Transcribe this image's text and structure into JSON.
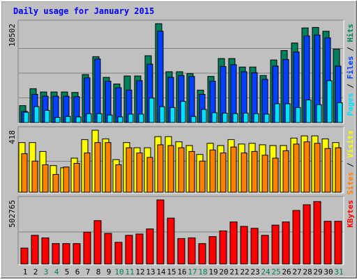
{
  "title": "Daily usage for January 2015",
  "colors": {
    "background": "#c0c0c0",
    "panel": "#c0c0c0",
    "grid": "#808080",
    "hits": "#00805c",
    "files": "#0040ff",
    "pages": "#00e0ff",
    "visits": "#ffff00",
    "sites": "#ff8000",
    "kbytes": "#ff0000",
    "title": "#0000ff",
    "weekend_day": "#00805c",
    "weekday": "#000000"
  },
  "chart_data": [
    {
      "type": "bar",
      "title": "Daily usage for January 2015",
      "panel": "top",
      "y_max_label": "10502",
      "ylim": [
        0,
        10502
      ],
      "categories": [
        "1",
        "2",
        "3",
        "4",
        "5",
        "6",
        "7",
        "8",
        "9",
        "10",
        "11",
        "12",
        "13",
        "14",
        "15",
        "16",
        "17",
        "18",
        "19",
        "20",
        "21",
        "22",
        "23",
        "24",
        "25",
        "26",
        "27",
        "28",
        "29",
        "30",
        "31"
      ],
      "weekend_days": [
        "3",
        "4",
        "10",
        "11",
        "17",
        "18",
        "24",
        "25",
        "31"
      ],
      "legend": [
        {
          "name": "Pages",
          "color": "#00e0ff"
        },
        {
          "name": " / ",
          "color": "#000000"
        },
        {
          "name": "Files",
          "color": "#0040ff"
        },
        {
          "name": " / ",
          "color": "#000000"
        },
        {
          "name": "Hits",
          "color": "#00805c"
        }
      ],
      "series": [
        {
          "name": "Hits",
          "values": [
            1800,
            3600,
            3250,
            3250,
            3250,
            3200,
            5100,
            7000,
            4800,
            4100,
            4950,
            4950,
            7100,
            10502,
            5400,
            5400,
            5200,
            3450,
            4900,
            6800,
            6800,
            5900,
            5900,
            5000,
            6650,
            7650,
            8450,
            10050,
            10102,
            9700,
            7800
          ]
        },
        {
          "name": "Files",
          "values": [
            1200,
            3000,
            2800,
            2800,
            2800,
            2750,
            4750,
            6750,
            4400,
            3700,
            3450,
            4450,
            6200,
            9700,
            4800,
            5000,
            4900,
            3000,
            4400,
            5950,
            6150,
            5400,
            5300,
            4600,
            6000,
            6700,
            7500,
            9200,
            9300,
            9000,
            6000
          ]
        },
        {
          "name": "Pages",
          "values": [
            1100,
            1700,
            1300,
            550,
            650,
            600,
            950,
            950,
            800,
            600,
            900,
            900,
            2600,
            1700,
            1600,
            2250,
            650,
            1400,
            1050,
            1000,
            950,
            1000,
            950,
            900,
            2000,
            2000,
            1600,
            2400,
            1900,
            4450,
            2100
          ]
        }
      ]
    },
    {
      "type": "bar",
      "panel": "middle",
      "y_max_label": "418",
      "ylim": [
        0,
        418
      ],
      "categories": [
        "1",
        "2",
        "3",
        "4",
        "5",
        "6",
        "7",
        "8",
        "9",
        "10",
        "11",
        "12",
        "13",
        "14",
        "15",
        "16",
        "17",
        "18",
        "19",
        "20",
        "21",
        "22",
        "23",
        "24",
        "25",
        "26",
        "27",
        "28",
        "29",
        "30",
        "31"
      ],
      "legend": [
        {
          "name": "Sites",
          "color": "#ff8000"
        },
        {
          "name": " / ",
          "color": "#000000"
        },
        {
          "name": "Visits",
          "color": "#ffff00"
        }
      ],
      "series": [
        {
          "name": "Visits",
          "values": [
            335,
            335,
            275,
            180,
            165,
            230,
            355,
            418,
            360,
            220,
            335,
            300,
            300,
            375,
            375,
            340,
            315,
            255,
            330,
            315,
            355,
            325,
            330,
            320,
            315,
            315,
            365,
            380,
            380,
            360,
            335
          ]
        },
        {
          "name": "Sites",
          "values": [
            260,
            210,
            185,
            120,
            170,
            195,
            265,
            335,
            335,
            185,
            300,
            265,
            235,
            320,
            315,
            300,
            275,
            210,
            285,
            265,
            305,
            265,
            275,
            250,
            230,
            280,
            325,
            340,
            330,
            295,
            300
          ]
        }
      ]
    },
    {
      "type": "bar",
      "panel": "bottom",
      "y_max_label": "502765",
      "ylim": [
        0,
        502765
      ],
      "categories": [
        "1",
        "2",
        "3",
        "4",
        "5",
        "6",
        "7",
        "8",
        "9",
        "10",
        "11",
        "12",
        "13",
        "14",
        "15",
        "16",
        "17",
        "18",
        "19",
        "20",
        "21",
        "22",
        "23",
        "24",
        "25",
        "26",
        "27",
        "28",
        "29",
        "30",
        "31"
      ],
      "legend": [
        {
          "name": "KBytes",
          "color": "#ff0000"
        }
      ],
      "series": [
        {
          "name": "KBytes",
          "values": [
            125000,
            225000,
            205000,
            160000,
            160000,
            160000,
            250000,
            340000,
            240000,
            170000,
            225000,
            235000,
            275000,
            502765,
            360000,
            200000,
            205000,
            160000,
            215000,
            260000,
            330000,
            295000,
            280000,
            225000,
            305000,
            330000,
            420000,
            465000,
            490000,
            335000,
            335000
          ]
        }
      ]
    }
  ]
}
